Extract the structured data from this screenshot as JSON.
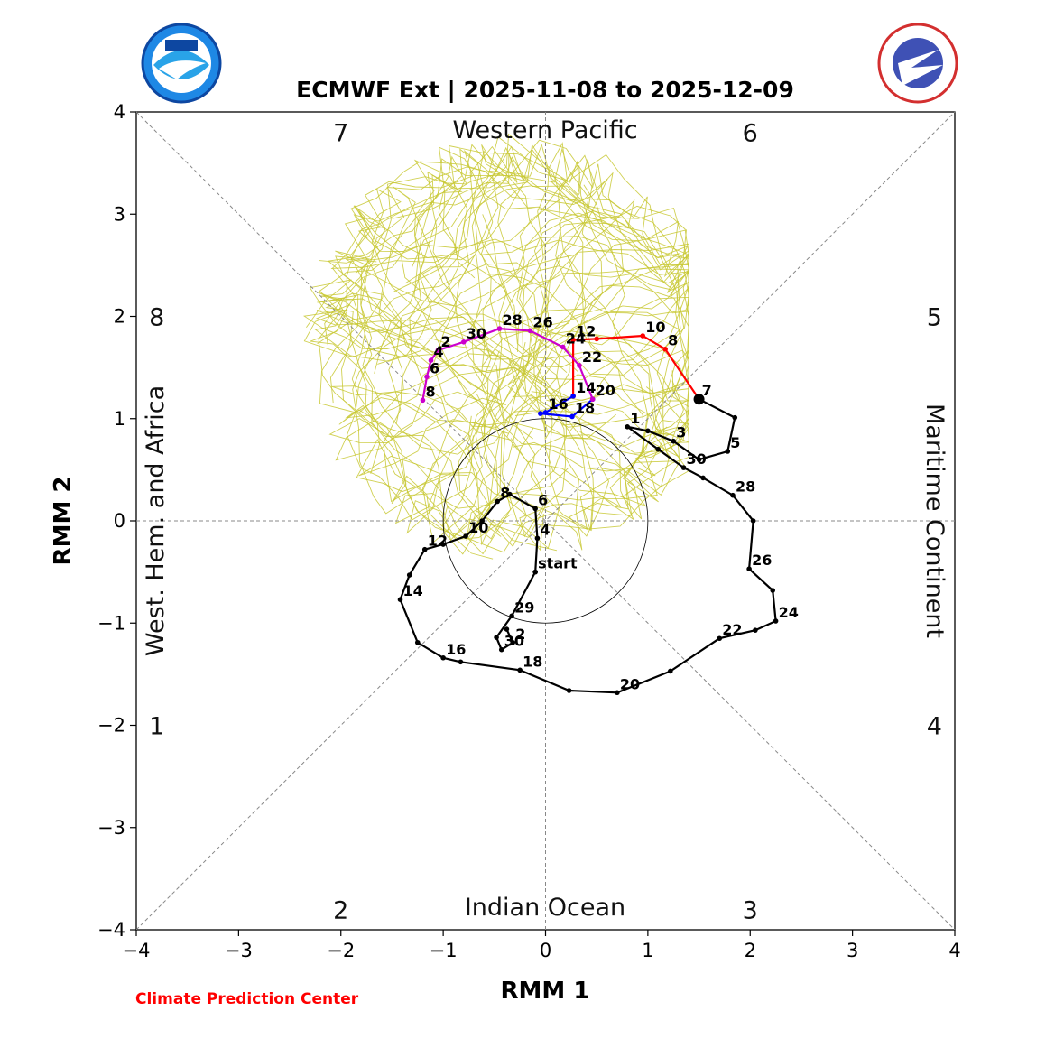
{
  "chart_data": {
    "type": "line",
    "title": "ECMWF Ext | 2025-11-08 to 2025-12-09",
    "xlabel": "RMM 1",
    "ylabel": "RMM 2",
    "xlim": [
      -4,
      4
    ],
    "ylim": [
      -4,
      4
    ],
    "xticks": [
      -4,
      -3,
      -2,
      -1,
      0,
      1,
      2,
      3,
      4
    ],
    "yticks": [
      -4,
      -3,
      -2,
      -1,
      0,
      1,
      2,
      3,
      4
    ],
    "grid": false,
    "phase_numbers": [
      {
        "label": "1",
        "x": -3.8,
        "y": -2.0
      },
      {
        "label": "2",
        "x": -2.0,
        "y": -3.8
      },
      {
        "label": "3",
        "x": 2.0,
        "y": -3.8
      },
      {
        "label": "4",
        "x": 3.8,
        "y": -2.0
      },
      {
        "label": "5",
        "x": 3.8,
        "y": 2.0
      },
      {
        "label": "6",
        "x": 2.0,
        "y": 3.8
      },
      {
        "label": "7",
        "x": -2.0,
        "y": 3.8
      },
      {
        "label": "8",
        "x": -3.8,
        "y": 2.0
      }
    ],
    "region_labels": {
      "top": "Western Pacific",
      "bottom": "Indian Ocean",
      "left": "West. Hem. and Africa",
      "right": "Maritime Continent"
    },
    "unit_circle_radius": 1,
    "ensemble_color": "#c8c832",
    "ensemble_note": "Ensemble member trajectories",
    "series": [
      {
        "color": "#000000",
        "points": [
          {
            "x": -0.1,
            "y": -0.5,
            "label": "start"
          },
          {
            "x": -0.08,
            "y": -0.17,
            "label": "4"
          },
          {
            "x": -0.1,
            "y": 0.12,
            "label": "6"
          },
          {
            "x": -0.35,
            "y": 0.26
          },
          {
            "x": -0.47,
            "y": 0.19,
            "label": "8"
          },
          {
            "x": -0.62,
            "y": 0.0
          },
          {
            "x": -0.78,
            "y": -0.15,
            "label": "10"
          },
          {
            "x": -1.0,
            "y": -0.23
          },
          {
            "x": -1.18,
            "y": -0.28,
            "label": "12"
          },
          {
            "x": -1.33,
            "y": -0.53
          },
          {
            "x": -1.42,
            "y": -0.77,
            "label": "14"
          },
          {
            "x": -1.25,
            "y": -1.19
          },
          {
            "x": -1.0,
            "y": -1.34,
            "label": "16"
          },
          {
            "x": -0.83,
            "y": -1.38
          },
          {
            "x": -0.25,
            "y": -1.46,
            "label": "18"
          },
          {
            "x": 0.23,
            "y": -1.66
          },
          {
            "x": 0.7,
            "y": -1.68,
            "label": "20"
          },
          {
            "x": 1.22,
            "y": -1.47
          },
          {
            "x": 1.7,
            "y": -1.15,
            "label": "22"
          },
          {
            "x": 2.05,
            "y": -1.07
          },
          {
            "x": 2.25,
            "y": -0.98,
            "label": "24"
          },
          {
            "x": 2.22,
            "y": -0.68
          },
          {
            "x": 1.99,
            "y": -0.47,
            "label": "26"
          },
          {
            "x": 2.03,
            "y": 0.0
          },
          {
            "x": 1.83,
            "y": 0.25,
            "label": "28"
          },
          {
            "x": 1.54,
            "y": 0.42
          },
          {
            "x": 1.35,
            "y": 0.52,
            "label": "30"
          },
          {
            "x": 1.1,
            "y": 0.7
          },
          {
            "x": 0.8,
            "y": 0.92,
            "label": "1"
          },
          {
            "x": 1.0,
            "y": 0.88
          },
          {
            "x": 1.25,
            "y": 0.78,
            "label": "3"
          },
          {
            "x": 1.5,
            "y": 0.6
          },
          {
            "x": 1.78,
            "y": 0.68,
            "label": "5"
          },
          {
            "x": 1.85,
            "y": 1.01
          },
          {
            "x": 1.5,
            "y": 1.19,
            "label": "7"
          }
        ]
      },
      {
        "color": "#000000",
        "points": [
          {
            "x": -0.1,
            "y": -0.5
          },
          {
            "x": -0.33,
            "y": -0.93,
            "label": "29"
          },
          {
            "x": -0.48,
            "y": -1.14
          },
          {
            "x": -0.43,
            "y": -1.26,
            "label": "30"
          },
          {
            "x": -0.32,
            "y": -1.19,
            "label": "2"
          },
          {
            "x": -0.38,
            "y": -1.06
          }
        ]
      },
      {
        "color": "#ff0000",
        "points": [
          {
            "x": 1.5,
            "y": 1.19
          },
          {
            "x": 1.17,
            "y": 1.68,
            "label": "8"
          },
          {
            "x": 0.95,
            "y": 1.81,
            "label": "10"
          },
          {
            "x": 0.5,
            "y": 1.78
          },
          {
            "x": 0.27,
            "y": 1.77,
            "label": "12"
          },
          {
            "x": 0.27,
            "y": 1.22,
            "label": "14"
          }
        ]
      },
      {
        "color": "#0000ff",
        "points": [
          {
            "x": 0.27,
            "y": 1.22
          },
          {
            "x": 0.0,
            "y": 1.06,
            "label": "16"
          },
          {
            "x": -0.05,
            "y": 1.05
          },
          {
            "x": 0.26,
            "y": 1.02,
            "label": "18"
          },
          {
            "x": 0.46,
            "y": 1.19,
            "label": "20"
          }
        ]
      },
      {
        "color": "#cc00cc",
        "points": [
          {
            "x": 0.46,
            "y": 1.19
          },
          {
            "x": 0.33,
            "y": 1.52,
            "label": "22"
          },
          {
            "x": 0.17,
            "y": 1.7,
            "label": "24"
          },
          {
            "x": -0.15,
            "y": 1.86,
            "label": "26"
          },
          {
            "x": -0.45,
            "y": 1.88,
            "label": "28"
          },
          {
            "x": -0.8,
            "y": 1.75,
            "label": "30"
          },
          {
            "x": -1.05,
            "y": 1.67,
            "label": "2"
          },
          {
            "x": -1.12,
            "y": 1.57,
            "label": "4"
          },
          {
            "x": -1.16,
            "y": 1.41,
            "label": "6"
          },
          {
            "x": -1.2,
            "y": 1.18,
            "label": "8"
          }
        ]
      }
    ],
    "big_dot": {
      "x": 1.5,
      "y": 1.19
    }
  },
  "logos": {
    "left": "NOAA",
    "right": "NATIONAL WEATHER SERVICE"
  },
  "footer": {
    "credit": "Climate Prediction Center"
  }
}
